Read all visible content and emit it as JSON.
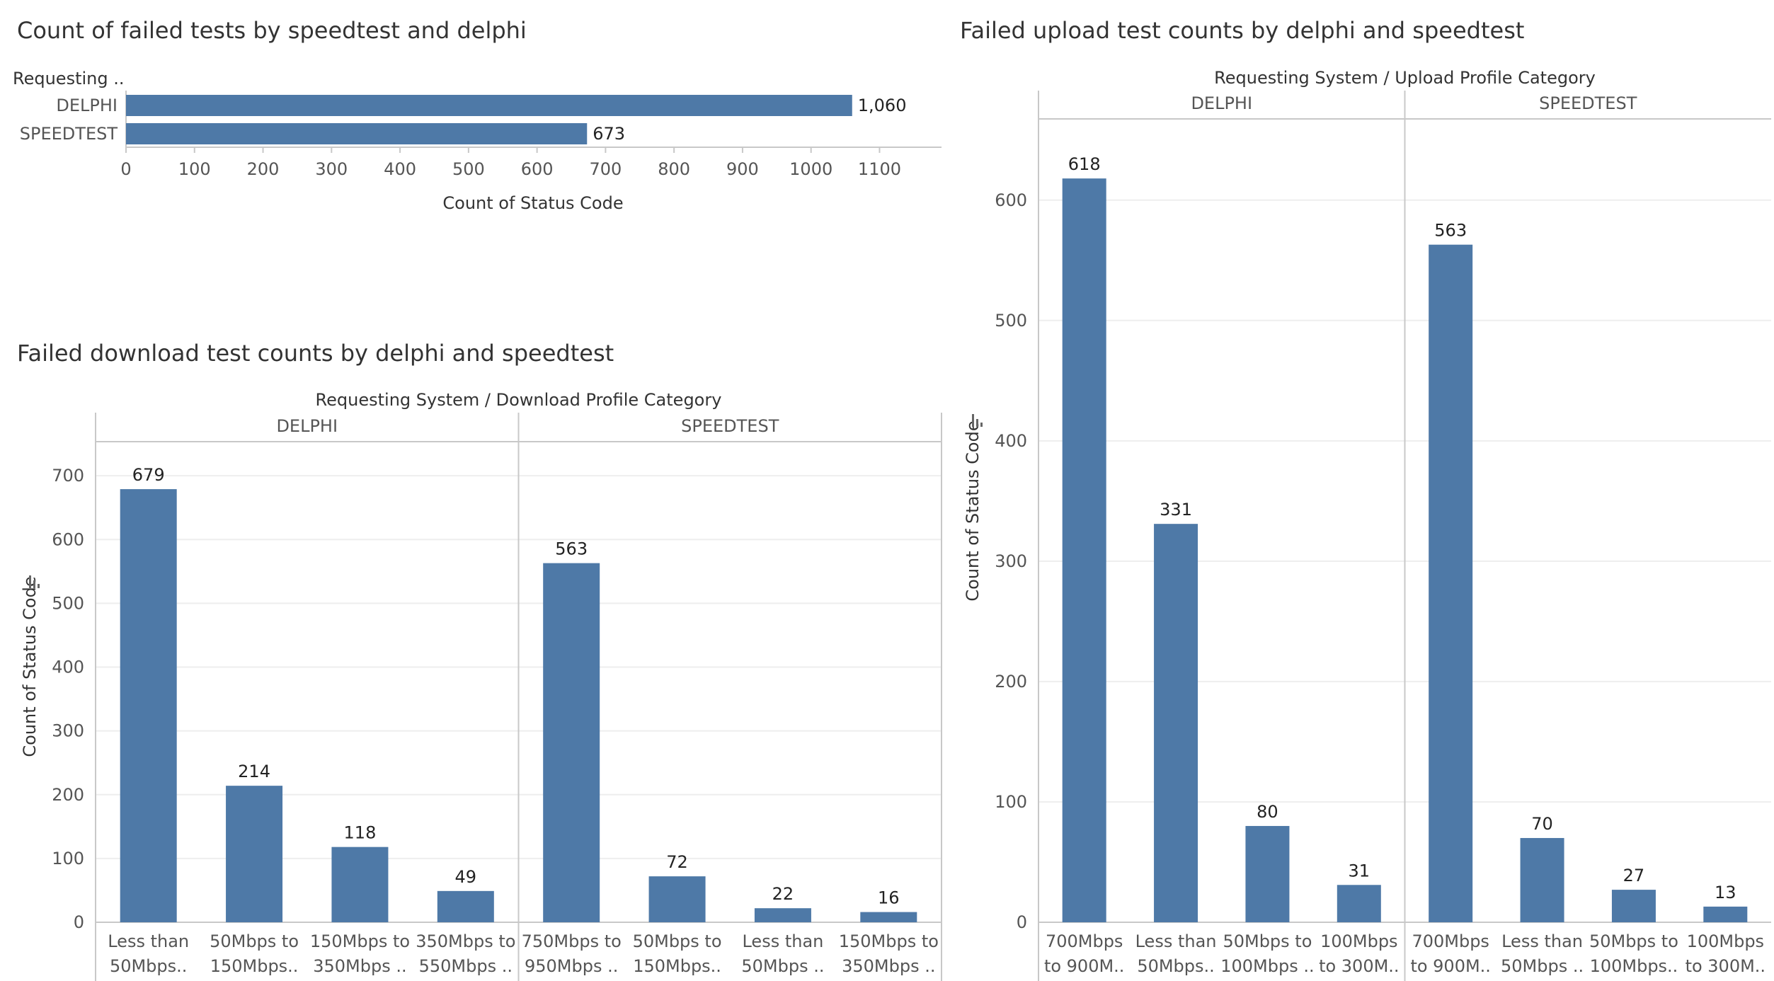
{
  "chart_data": [
    {
      "id": "top",
      "type": "bar",
      "orientation": "horizontal",
      "title": "Count of failed tests by speedtest and delphi",
      "row_header": "Requesting ..",
      "xlabel": "Count of Status Code",
      "categories": [
        "DELPHI",
        "SPEEDTEST"
      ],
      "values": [
        1060,
        673
      ],
      "value_labels": [
        "1,060",
        "673"
      ],
      "xlim": [
        0,
        1200
      ],
      "x_ticks": [
        0,
        100,
        200,
        300,
        400,
        500,
        600,
        700,
        800,
        900,
        1000,
        1100
      ],
      "grid": false
    },
    {
      "id": "download",
      "type": "bar",
      "title": "Failed download test counts by delphi and speedtest",
      "column_title": "Requesting System / Download Profile Category",
      "ylabel": "Count of Status Code",
      "ylim": [
        0,
        760
      ],
      "y_ticks": [
        0,
        100,
        200,
        300,
        400,
        500,
        600,
        700
      ],
      "grid": true,
      "panes": [
        {
          "name": "DELPHI",
          "categories": [
            [
              "Less than",
              "50Mbps.."
            ],
            [
              "50Mbps to",
              "150Mbps.."
            ],
            [
              "150Mbps to",
              "350Mbps .."
            ],
            [
              "350Mbps to",
              "550Mbps .."
            ]
          ],
          "values": [
            679,
            214,
            118,
            49
          ]
        },
        {
          "name": "SPEEDTEST",
          "categories": [
            [
              "750Mbps to",
              "950Mbps .."
            ],
            [
              "50Mbps to",
              "150Mbps.."
            ],
            [
              "Less than",
              "50Mbps .."
            ],
            [
              "150Mbps to",
              "350Mbps .."
            ]
          ],
          "values": [
            563,
            72,
            22,
            16
          ]
        }
      ]
    },
    {
      "id": "upload",
      "type": "bar",
      "title": "Failed upload test counts by delphi and speedtest",
      "column_title": "Requesting System / Upload Profile Category",
      "ylabel": "Count of Status Code",
      "ylim": [
        0,
        685
      ],
      "y_ticks": [
        0,
        100,
        200,
        300,
        400,
        500,
        600
      ],
      "grid": true,
      "panes": [
        {
          "name": "DELPHI",
          "categories": [
            [
              "700Mbps",
              "to 900M.."
            ],
            [
              "Less than",
              "50Mbps.."
            ],
            [
              "50Mbps to",
              "100Mbps .."
            ],
            [
              "100Mbps",
              "to 300M.."
            ]
          ],
          "values": [
            618,
            331,
            80,
            31
          ]
        },
        {
          "name": "SPEEDTEST",
          "categories": [
            [
              "700Mbps",
              "to 900M.."
            ],
            [
              "Less than",
              "50Mbps .."
            ],
            [
              "50Mbps to",
              "100Mbps.."
            ],
            [
              "100Mbps",
              "to 300M.."
            ]
          ],
          "values": [
            563,
            70,
            27,
            13
          ]
        }
      ]
    }
  ],
  "icons": {
    "sort_icon": "sort-descending-icon"
  },
  "colors": {
    "bar": "#4e79a7"
  }
}
